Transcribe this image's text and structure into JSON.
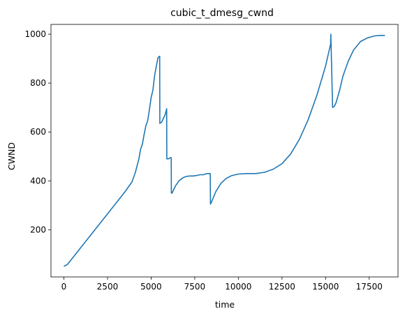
{
  "chart_data": {
    "type": "line",
    "title": "cubic_t_dmesg_cwnd",
    "xlabel": "time",
    "ylabel": "CWND",
    "xlim": [
      -740,
      19150
    ],
    "ylim": [
      7,
      1040
    ],
    "grid": false,
    "legend": "none",
    "xticks": [
      0,
      2500,
      5000,
      7500,
      10000,
      12500,
      15000,
      17500
    ],
    "yticks": [
      200,
      400,
      600,
      800,
      1000
    ],
    "xtick_labels": [
      "0",
      "2500",
      "5000",
      "7500",
      "10000",
      "12500",
      "15000",
      "17500"
    ],
    "ytick_labels": [
      "200",
      "400",
      "600",
      "800",
      "1000"
    ],
    "series": [
      {
        "color": "#1f77b4",
        "x": [
          0,
          200,
          500,
          1000,
          1500,
          2000,
          2500,
          3000,
          3500,
          3900,
          4100,
          4300,
          4400,
          4500,
          4600,
          4700,
          4800,
          4900,
          5000,
          5100,
          5200,
          5300,
          5400,
          5490,
          5500,
          5600,
          5700,
          5800,
          5890,
          5900,
          6000,
          6100,
          6150,
          6160,
          6200,
          6300,
          6400,
          6600,
          6800,
          7000,
          7200,
          7400,
          7600,
          7800,
          8000,
          8200,
          8390,
          8400,
          8500,
          8700,
          9000,
          9300,
          9600,
          10000,
          10500,
          11000,
          11500,
          12000,
          12500,
          13000,
          13500,
          14000,
          14500,
          15000,
          15290,
          15300,
          15400,
          15500,
          15600,
          15800,
          16000,
          16300,
          16600,
          17000,
          17400,
          17800,
          18100,
          18400
        ],
        "y": [
          50,
          58,
          85,
          130,
          175,
          220,
          265,
          310,
          355,
          395,
          435,
          490,
          530,
          550,
          590,
          625,
          645,
          690,
          740,
          770,
          830,
          870,
          905,
          910,
          635,
          640,
          655,
          670,
          695,
          490,
          490,
          495,
          495,
          350,
          350,
          365,
          380,
          400,
          412,
          418,
          420,
          420,
          422,
          425,
          425,
          430,
          430,
          305,
          320,
          355,
          390,
          410,
          421,
          428,
          430,
          430,
          435,
          448,
          470,
          510,
          570,
          650,
          750,
          870,
          960,
          1000,
          700,
          705,
          720,
          770,
          830,
          890,
          935,
          970,
          985,
          993,
          995,
          995
        ]
      }
    ]
  }
}
